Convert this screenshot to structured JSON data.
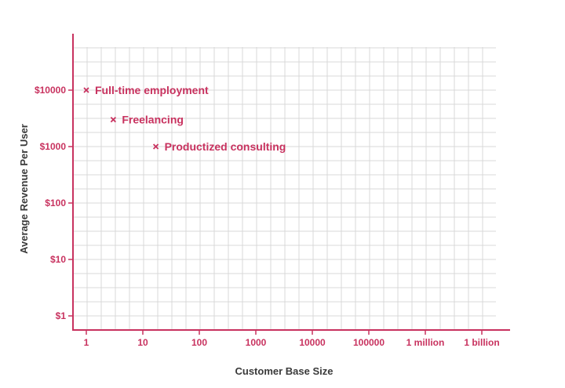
{
  "chart_data": {
    "type": "scatter",
    "title": "",
    "xlabel": "Customer Base Size",
    "ylabel": "Average Revenue Per User",
    "x_scale": "log",
    "y_scale": "log",
    "grid": true,
    "x_ticks": [
      {
        "value": 1,
        "label": "1"
      },
      {
        "value": 10,
        "label": "10"
      },
      {
        "value": 100,
        "label": "100"
      },
      {
        "value": 1000,
        "label": "1000"
      },
      {
        "value": 10000,
        "label": "10000"
      },
      {
        "value": 100000,
        "label": "100000"
      },
      {
        "value": 1000000,
        "label": "1 million"
      },
      {
        "value": 1000000000,
        "label": "1 billion"
      }
    ],
    "y_ticks": [
      {
        "value": 1,
        "label": "$1"
      },
      {
        "value": 10,
        "label": "$10"
      },
      {
        "value": 100,
        "label": "$100"
      },
      {
        "value": 1000,
        "label": "$1000"
      },
      {
        "value": 10000,
        "label": "$10000"
      }
    ],
    "points": [
      {
        "label": "Full-time employment",
        "x": 1,
        "y": 10000
      },
      {
        "label": "Freelancing",
        "x": 3,
        "y": 3000
      },
      {
        "label": "Productized consulting",
        "x": 17,
        "y": 1000
      }
    ],
    "colors": {
      "accent": "#c8325f",
      "grid": "#d9d9d9",
      "axis_title": "#3a3a3a"
    }
  }
}
